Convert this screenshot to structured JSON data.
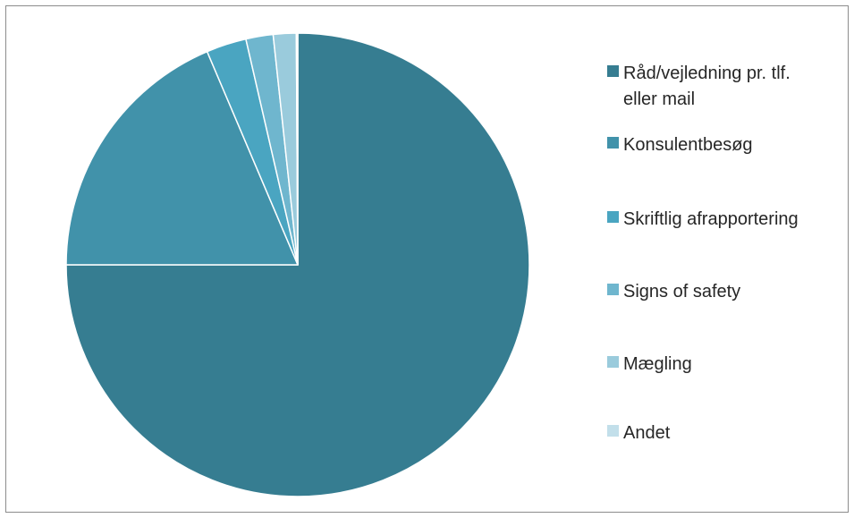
{
  "chart_data": {
    "type": "pie",
    "title": "",
    "categories": [
      "Råd/vejledning pr. tlf. eller mail",
      "Konsulentbesøg",
      "Skriftlig afrapportering",
      "Signs of safety",
      "Mægling",
      "Andet"
    ],
    "values": [
      75.0,
      18.6,
      2.8,
      1.9,
      1.6,
      0.1
    ],
    "colors": [
      "#367d91",
      "#4192aa",
      "#4aa5c1",
      "#6fb6ce",
      "#9acbdc",
      "#c2dfea"
    ],
    "legend_position": "right"
  }
}
